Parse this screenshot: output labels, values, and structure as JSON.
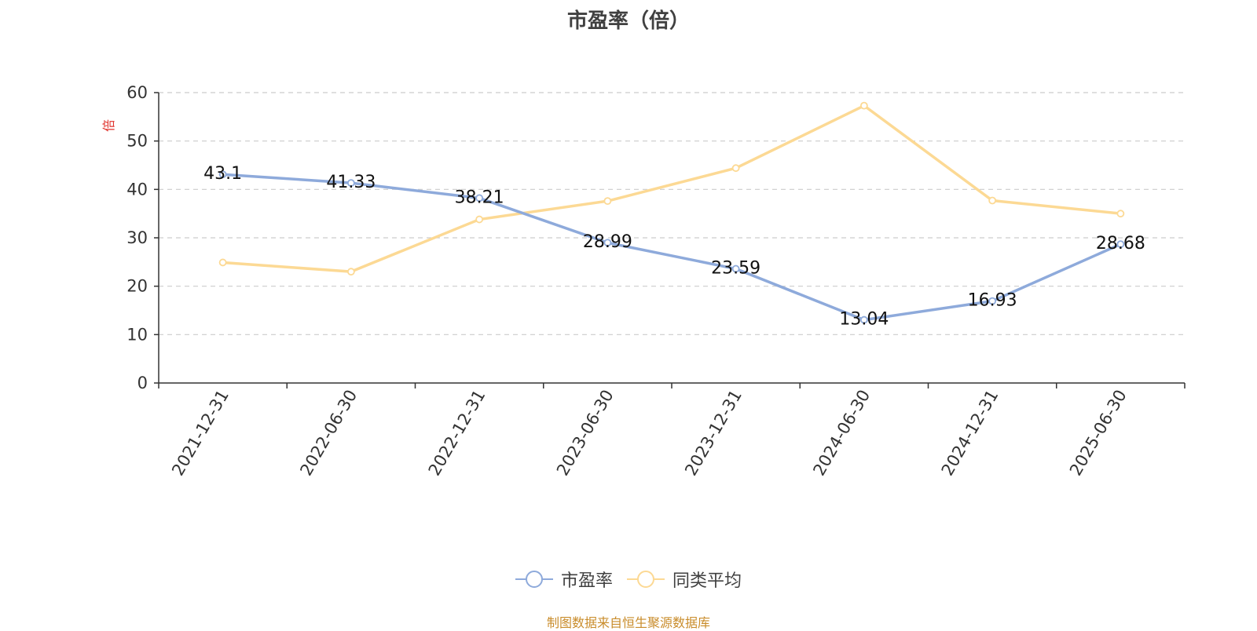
{
  "title": "市盈率（倍）",
  "source_note": "制图数据来自恒生聚源数据库",
  "chart_data": {
    "type": "line",
    "title": "市盈率（倍）",
    "ylabel": "倍",
    "ylim": [
      0,
      60
    ],
    "yticks": [
      0,
      10,
      20,
      30,
      40,
      50,
      60
    ],
    "grid": true,
    "legend_position": "bottom-center",
    "categories": [
      "2021-12-31",
      "2022-06-30",
      "2022-12-31",
      "2023-06-30",
      "2023-12-31",
      "2024-06-30",
      "2024-12-31",
      "2025-06-30"
    ],
    "series": [
      {
        "name": "市盈率",
        "color": "#8eaadb",
        "show_labels": true,
        "values": [
          43.1,
          41.33,
          38.21,
          28.99,
          23.59,
          13.04,
          16.93,
          28.68
        ]
      },
      {
        "name": "同类平均",
        "color": "#fcd994",
        "show_labels": false,
        "values": [
          24.9,
          23.0,
          33.8,
          37.6,
          44.4,
          57.3,
          37.7,
          35.0
        ]
      }
    ]
  }
}
